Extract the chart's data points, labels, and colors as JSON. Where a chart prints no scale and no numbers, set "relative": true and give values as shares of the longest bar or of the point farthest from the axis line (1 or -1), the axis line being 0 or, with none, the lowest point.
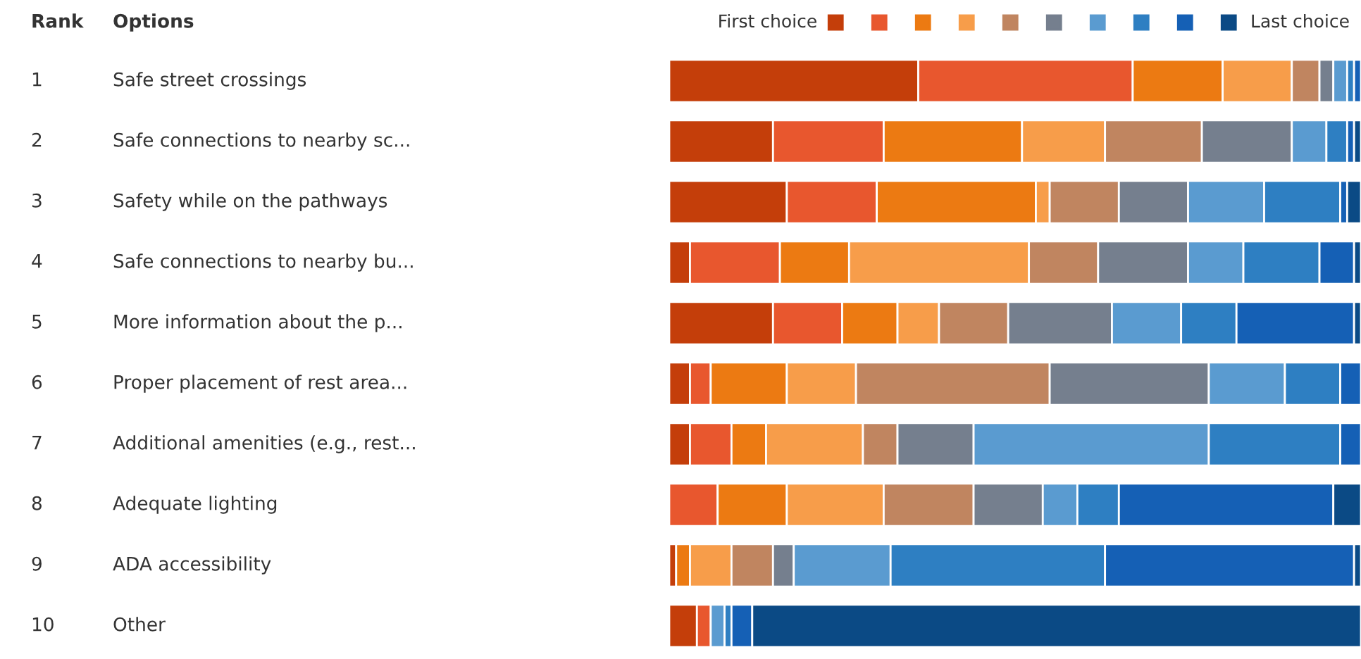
{
  "chart_data": {
    "type": "bar",
    "orientation": "horizontal",
    "stacked": true,
    "relative": true,
    "categories": [
      "Safe street crossings",
      "Safe connections to nearby sc...",
      "Safety while on the pathways",
      "Safe connections to nearby bu...",
      "More information about the p...",
      "Proper placement of rest area...",
      "Additional amenities (e.g., rest...",
      "Adequate lighting",
      "ADA accessibility",
      "Other"
    ],
    "annotations": [
      "Rank",
      "Options",
      "First choice",
      "Last choice",
      "1",
      "2",
      "3",
      "4",
      "5",
      "6",
      "7",
      "8",
      "9",
      "10"
    ],
    "series": [
      {
        "color": "#c43e0a",
        "values": [
          0.36,
          0.15,
          0.17,
          0.03,
          0.15,
          0.03,
          0.03,
          0,
          0.01,
          0.04
        ]
      },
      {
        "color": "#e8572e",
        "values": [
          0.31,
          0.16,
          0.13,
          0.13,
          0.1,
          0.03,
          0.06,
          0.07,
          0,
          0.02
        ]
      },
      {
        "color": "#ec7a12",
        "values": [
          0.13,
          0.2,
          0.23,
          0.1,
          0.08,
          0.11,
          0.05,
          0.1,
          0.02,
          0
        ]
      },
      {
        "color": "#f79d4a",
        "values": [
          0.1,
          0.12,
          0.02,
          0.26,
          0.06,
          0.1,
          0.14,
          0.14,
          0.06,
          0
        ]
      },
      {
        "color": "#c08560",
        "values": [
          0.04,
          0.14,
          0.1,
          0.1,
          0.1,
          0.28,
          0.05,
          0.13,
          0.06,
          0
        ]
      },
      {
        "color": "#757f8e",
        "values": [
          0.02,
          0.13,
          0.1,
          0.13,
          0.15,
          0.23,
          0.11,
          0.1,
          0.03,
          0
        ]
      },
      {
        "color": "#5a9bd0",
        "values": [
          0.02,
          0.05,
          0.11,
          0.08,
          0.1,
          0.11,
          0.34,
          0.05,
          0.14,
          0.02
        ]
      },
      {
        "color": "#2e7fc2",
        "values": [
          0.01,
          0.03,
          0.11,
          0.11,
          0.08,
          0.08,
          0.19,
          0.06,
          0.31,
          0.01
        ]
      },
      {
        "color": "#1560b5",
        "values": [
          0.01,
          0.01,
          0.01,
          0.05,
          0.17,
          0.03,
          0.03,
          0.31,
          0.36,
          0.03
        ]
      },
      {
        "color": "#0b4a85",
        "values": [
          0,
          0.01,
          0.02,
          0.01,
          0.01,
          0,
          0,
          0.04,
          0.01,
          0.88
        ]
      }
    ]
  }
}
